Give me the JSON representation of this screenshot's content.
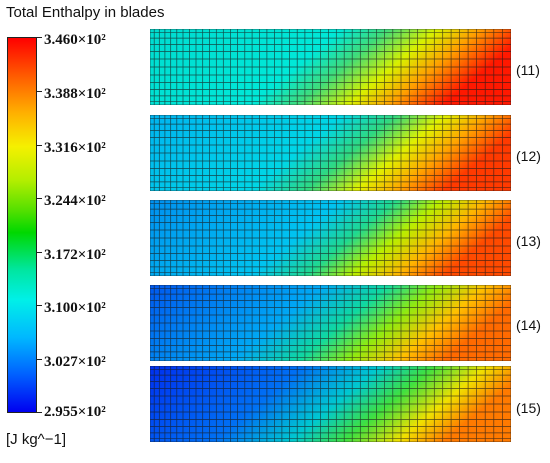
{
  "legend": {
    "title": "Total Enthalpy in blades",
    "unit": "[J kg^−1]",
    "ticks": [
      "3.460×10²",
      "3.388×10²",
      "3.316×10²",
      "3.244×10²",
      "3.172×10²",
      "3.100×10²",
      "3.027×10²",
      "2.955×10²"
    ]
  },
  "blades": [
    {
      "label": "(11)"
    },
    {
      "label": "(12)"
    },
    {
      "label": "(13)"
    },
    {
      "label": "(14)"
    },
    {
      "label": "(15)"
    }
  ]
}
